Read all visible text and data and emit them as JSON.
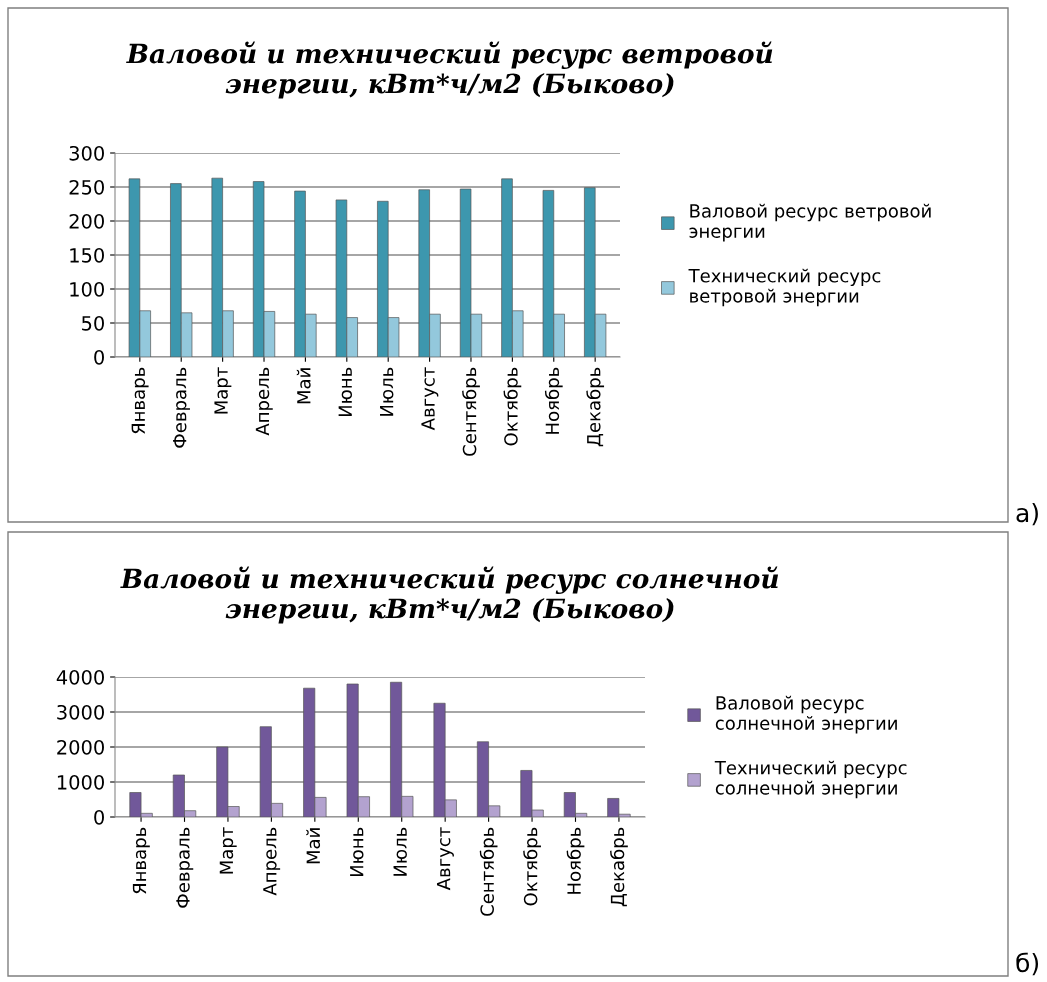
{
  "chart_data": [
    {
      "type": "bar",
      "title": "Валовой и технический ресурс ветровой\nэнергии, кВт*ч/м2 (Быково)",
      "categories": [
        "Январь",
        "Февраль",
        "Март",
        "Апрель",
        "Май",
        "Июнь",
        "Июль",
        "Август",
        "Сентябрь",
        "Октябрь",
        "Ноябрь",
        "Декабрь"
      ],
      "series": [
        {
          "name": "Валовой ресурс ветровой\nэнергии",
          "color": "#3d97ae",
          "values": [
            262,
            255,
            263,
            258,
            244,
            231,
            229,
            246,
            247,
            262,
            245,
            249
          ]
        },
        {
          "name": "Технический ресурс\nветровой энергии",
          "color": "#93c8dc",
          "values": [
            68,
            65,
            68,
            67,
            63,
            58,
            58,
            63,
            63,
            68,
            63,
            63
          ]
        }
      ],
      "ylim": [
        0,
        300
      ],
      "yticks": [
        0,
        50,
        100,
        150,
        200,
        250,
        300
      ],
      "grid": "y",
      "legend": "right",
      "annotations": [
        "а)"
      ]
    },
    {
      "type": "bar",
      "title": "Валовой и технический ресурс солнечной\nэнергии, кВт*ч/м2 (Быково)",
      "categories": [
        "Январь",
        "Февраль",
        "Март",
        "Апрель",
        "Май",
        "Июнь",
        "Июль",
        "Август",
        "Сентябрь",
        "Октябрь",
        "Ноябрь",
        "Декабрь"
      ],
      "series": [
        {
          "name": "Валовой ресурс\nсолнечной энергии",
          "color": "#71589a",
          "values": [
            700,
            1200,
            2000,
            2580,
            3680,
            3800,
            3850,
            3250,
            2150,
            1330,
            700,
            530
          ]
        },
        {
          "name": "Технический ресурс\nсолнечной энергии",
          "color": "#b3a2cf",
          "values": [
            105,
            180,
            300,
            390,
            560,
            580,
            590,
            490,
            320,
            200,
            105,
            80
          ]
        }
      ],
      "ylim": [
        0,
        4000
      ],
      "yticks": [
        0,
        1000,
        2000,
        3000,
        4000
      ],
      "grid": "y",
      "legend": "right",
      "annotations": [
        "б)"
      ]
    }
  ]
}
